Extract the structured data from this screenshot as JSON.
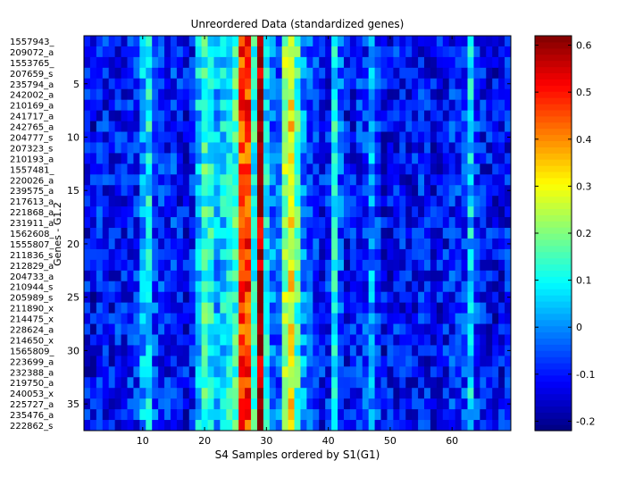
{
  "chart_data": {
    "type": "heatmap",
    "title": "Unreordered Data (standardized genes)",
    "xlabel": "S4 Samples ordered by S1(G1)",
    "ylabel": "Genes - G1.2",
    "x_range": [
      1,
      69
    ],
    "y_range": [
      1,
      37
    ],
    "x_ticks": [
      "10",
      "20",
      "30",
      "40",
      "50",
      "60"
    ],
    "y_ticks": [
      "5",
      "10",
      "15",
      "20",
      "25",
      "30",
      "35"
    ],
    "gene_labels": [
      "1557943_",
      "209072_a",
      "1553765_",
      "207659_s",
      "235794_a",
      "242002_a",
      "210169_a",
      "241717_a",
      "242765_a",
      "204777_s",
      "207323_s",
      "210193_a",
      "1557481_",
      "220026_a",
      "239575_a",
      "217613_a",
      "221868_a",
      "231911_a",
      "1562608_",
      "1555807_",
      "211836_s",
      "212829_a",
      "204733_a",
      "210944_s",
      "205989_s",
      "211890_x",
      "214475_x",
      "228624_a",
      "214650_x",
      "1565809_",
      "223699_a",
      "232388_a",
      "219750_a",
      "240053_x",
      "225727_a",
      "235476_a",
      "222862_s"
    ],
    "colorbar": {
      "range": [
        -0.22,
        0.62
      ],
      "ticks": [
        "-0.2",
        "-0.1",
        "0",
        "0.1",
        "0.2",
        "0.3",
        "0.4",
        "0.5",
        "0.6"
      ],
      "colormap": "jet"
    },
    "column_profile": [
      -0.12,
      -0.13,
      -0.1,
      -0.11,
      -0.12,
      -0.1,
      -0.11,
      -0.09,
      -0.1,
      0.02,
      0.1,
      -0.06,
      -0.09,
      -0.1,
      -0.08,
      -0.11,
      -0.12,
      -0.1,
      0.05,
      0.14,
      0.11,
      0.03,
      0.07,
      0.09,
      0.14,
      0.46,
      0.47,
      0.12,
      0.58,
      0.08,
      -0.02,
      -0.04,
      0.22,
      0.31,
      0.15,
      0.0,
      -0.06,
      -0.09,
      -0.11,
      -0.1,
      0.09,
      -0.05,
      -0.12,
      -0.11,
      -0.09,
      -0.08,
      0.02,
      -0.07,
      -0.13,
      -0.12,
      -0.11,
      -0.12,
      -0.12,
      -0.11,
      -0.1,
      -0.11,
      -0.12,
      -0.12,
      -0.11,
      -0.09,
      -0.08,
      -0.07,
      0.06,
      -0.07,
      -0.11,
      -0.12,
      -0.13,
      -0.12,
      -0.11
    ],
    "cell_noise_amplitude": 0.09,
    "grid": false
  }
}
